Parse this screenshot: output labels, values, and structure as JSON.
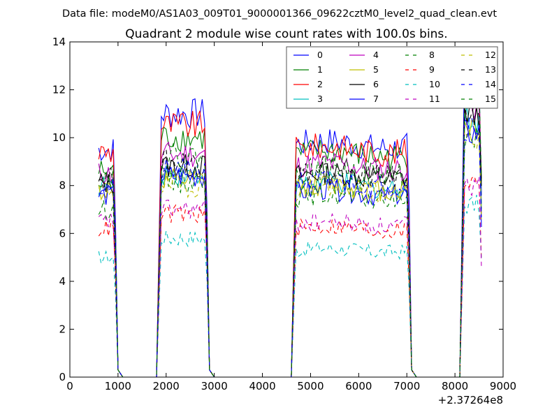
{
  "suptitle": "Data file: modeM0/AS1A03_009T01_9000001366_09622cztM0_level2_quad_clean.evt",
  "chart_data": {
    "type": "line",
    "title": "Quadrant 2 module wise count rates with 100.0s bins.",
    "xlabel": "",
    "ylabel": "",
    "xlim": [
      0,
      9000
    ],
    "ylim": [
      0,
      14
    ],
    "xticks": [
      "0",
      "1000",
      "2000",
      "3000",
      "4000",
      "5000",
      "6000",
      "7000",
      "8000",
      "9000"
    ],
    "yticks": [
      "0",
      "2",
      "4",
      "6",
      "8",
      "10",
      "12",
      "14"
    ],
    "x_offset_label": "+2.37264e8",
    "legend_position": "top-right",
    "segments": [
      [
        600,
        1100
      ],
      [
        1900,
        3000
      ],
      [
        4700,
        7200
      ],
      [
        8200,
        8700
      ]
    ],
    "series": [
      {
        "name": "0",
        "color": "#0000ff",
        "dash": "solid",
        "levels": [
          9.5,
          11.0,
          9.7,
          12.8
        ]
      },
      {
        "name": "1",
        "color": "#008000",
        "dash": "solid",
        "levels": [
          8.6,
          10.0,
          9.3,
          12.0
        ]
      },
      {
        "name": "2",
        "color": "#ff0000",
        "dash": "solid",
        "levels": [
          9.4,
          10.5,
          9.5,
          12.0
        ]
      },
      {
        "name": "3",
        "color": "#00bfbf",
        "dash": "solid",
        "levels": [
          8.0,
          8.5,
          8.0,
          10.8
        ]
      },
      {
        "name": "4",
        "color": "#bf00bf",
        "dash": "solid",
        "levels": [
          8.5,
          9.3,
          8.8,
          11.3
        ]
      },
      {
        "name": "5",
        "color": "#bfbf00",
        "dash": "solid",
        "levels": [
          7.8,
          8.2,
          7.9,
          10.5
        ]
      },
      {
        "name": "6",
        "color": "#000000",
        "dash": "solid",
        "levels": [
          8.1,
          8.8,
          8.4,
          11.0
        ]
      },
      {
        "name": "7",
        "color": "#0000ff",
        "dash": "solid",
        "levels": [
          7.6,
          8.4,
          7.7,
          10.2
        ]
      },
      {
        "name": "8",
        "color": "#008000",
        "dash": "dashed",
        "levels": [
          7.0,
          8.2,
          7.5,
          10.0
        ]
      },
      {
        "name": "9",
        "color": "#ff0000",
        "dash": "dashed",
        "levels": [
          6.2,
          6.8,
          6.2,
          8.2
        ]
      },
      {
        "name": "10",
        "color": "#00bfbf",
        "dash": "dashed",
        "levels": [
          5.0,
          5.8,
          5.3,
          7.2
        ]
      },
      {
        "name": "11",
        "color": "#bf00bf",
        "dash": "dashed",
        "levels": [
          6.5,
          7.0,
          6.4,
          8.0
        ]
      },
      {
        "name": "12",
        "color": "#bfbf00",
        "dash": "dashed",
        "levels": [
          7.8,
          8.0,
          7.8,
          10.0
        ]
      },
      {
        "name": "13",
        "color": "#000000",
        "dash": "dashed",
        "levels": [
          8.3,
          9.0,
          8.5,
          11.0
        ]
      },
      {
        "name": "14",
        "color": "#0000ff",
        "dash": "dashed",
        "levels": [
          7.9,
          8.6,
          8.1,
          10.5
        ]
      },
      {
        "name": "15",
        "color": "#008000",
        "dash": "dashed",
        "levels": [
          8.4,
          9.2,
          8.6,
          11.5
        ]
      }
    ]
  }
}
